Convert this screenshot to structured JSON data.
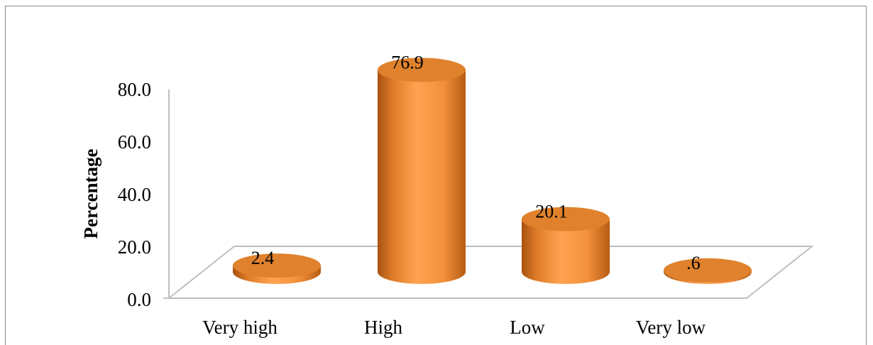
{
  "chart_data": {
    "type": "bar",
    "style": "3d-cylinder",
    "categories": [
      "Very high",
      "High",
      "Low",
      "Very low"
    ],
    "values": [
      2.4,
      76.9,
      20.1,
      0.6
    ],
    "value_labels": [
      "2.4",
      "76.9",
      "20.1",
      ".6"
    ],
    "ylabel": "Percentage",
    "yticks": [
      "0.0",
      "20.0",
      "40.0",
      "60.0",
      "80.0"
    ],
    "ylim": [
      0,
      80
    ],
    "grid": false,
    "legend": "none",
    "colors": {
      "bar": "#f7943a",
      "bar_dark": "#b35a10",
      "bar_top": "#e0822d"
    }
  }
}
